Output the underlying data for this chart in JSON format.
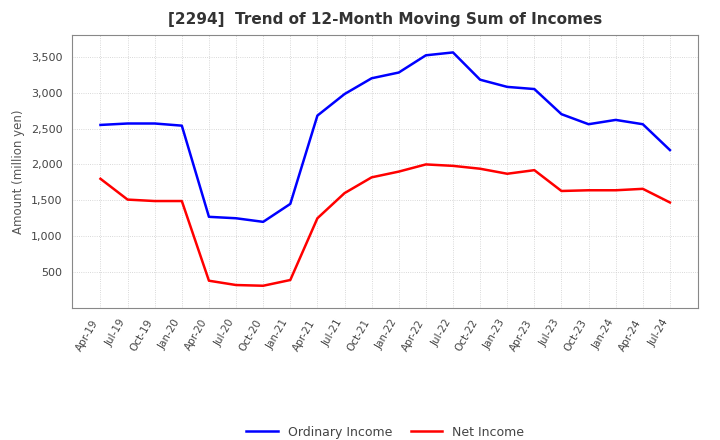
{
  "title": "[2294]  Trend of 12-Month Moving Sum of Incomes",
  "ylabel": "Amount (million yen)",
  "line_colors": {
    "ordinary": "#0000FF",
    "net": "#FF0000"
  },
  "line_width": 1.8,
  "x_labels": [
    "Apr-19",
    "Jul-19",
    "Oct-19",
    "Jan-20",
    "Apr-20",
    "Jul-20",
    "Oct-20",
    "Jan-21",
    "Apr-21",
    "Jul-21",
    "Oct-21",
    "Jan-22",
    "Apr-22",
    "Jul-22",
    "Oct-22",
    "Jan-23",
    "Apr-23",
    "Jul-23",
    "Oct-23",
    "Jan-24",
    "Apr-24",
    "Jul-24"
  ],
  "ordinary_income": [
    2550,
    2570,
    2570,
    2540,
    1270,
    1250,
    1200,
    1450,
    2680,
    2980,
    3200,
    3280,
    3520,
    3560,
    3180,
    3080,
    3050,
    2700,
    2560,
    2620,
    2560,
    2200
  ],
  "net_income": [
    1800,
    1510,
    1490,
    1490,
    380,
    320,
    310,
    390,
    1250,
    1600,
    1820,
    1900,
    2000,
    1980,
    1940,
    1870,
    1920,
    1630,
    1640,
    1640,
    1660,
    1470
  ],
  "ylim": [
    0,
    3800
  ],
  "yticks": [
    500,
    1000,
    1500,
    2000,
    2500,
    3000,
    3500
  ],
  "background_color": "#ffffff",
  "grid_color": "#cccccc"
}
